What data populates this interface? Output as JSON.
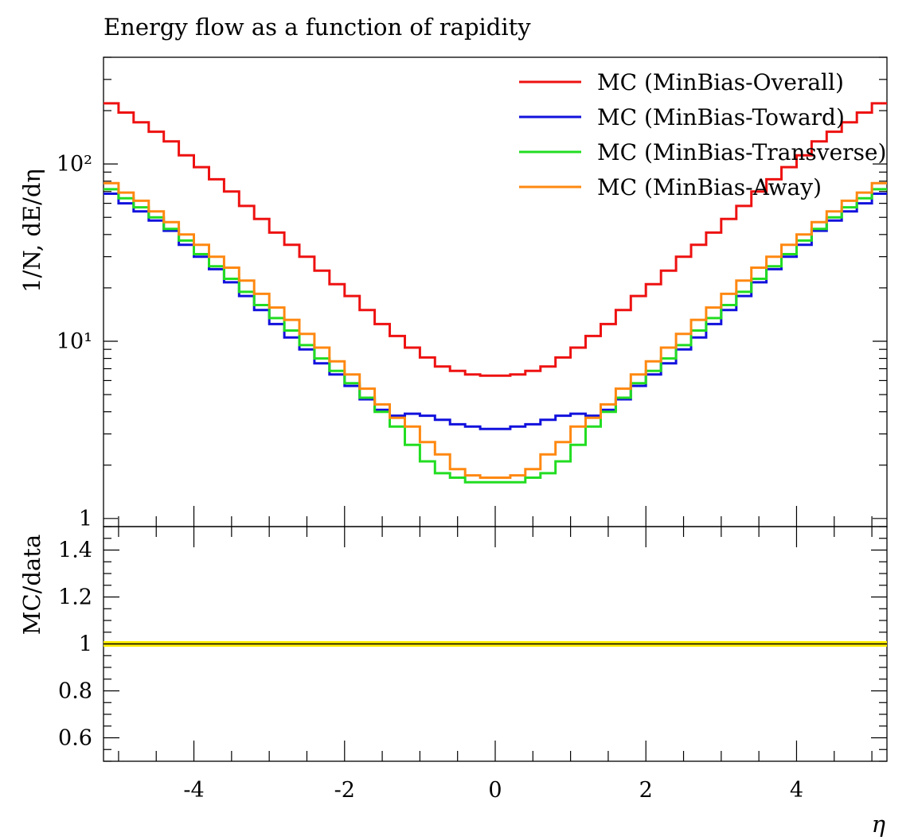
{
  "chart_data": [
    {
      "type": "line",
      "title": "Energy flow as a function of rapidity",
      "ylabel": "1/N, dE/dη",
      "xlabel": "",
      "yscale": "log",
      "ylim": [
        0.9,
        400
      ],
      "xlim": [
        -5.2,
        5.2
      ],
      "ytick_labels": [
        "1",
        "10¹",
        "10²"
      ],
      "legend_position": "top-right",
      "bin_edges": [
        -5.2,
        -5.0,
        -4.8,
        -4.6,
        -4.4,
        -4.2,
        -4.0,
        -3.8,
        -3.6,
        -3.4,
        -3.2,
        -3.0,
        -2.8,
        -2.6,
        -2.4,
        -2.2,
        -2.0,
        -1.8,
        -1.6,
        -1.4,
        -1.2,
        -1.0,
        -0.8,
        -0.6,
        -0.4,
        -0.2,
        0.0,
        0.2,
        0.4,
        0.6,
        0.8,
        1.0,
        1.2,
        1.4,
        1.6,
        1.8,
        2.0,
        2.2,
        2.4,
        2.6,
        2.8,
        3.0,
        3.2,
        3.4,
        3.6,
        3.8,
        4.0,
        4.2,
        4.4,
        4.6,
        4.8,
        5.0,
        5.2
      ],
      "series": [
        {
          "name": "MC (MinBias-Overall)",
          "color": "#ee1111",
          "values": [
            220,
            195,
            172,
            152,
            134,
            112,
            96,
            82,
            70,
            58,
            49,
            41,
            35,
            30,
            25,
            21,
            18,
            15,
            12.5,
            10.7,
            9.2,
            8.1,
            7.2,
            6.8,
            6.5,
            6.4,
            6.4,
            6.5,
            6.8,
            7.2,
            8.1,
            9.2,
            10.7,
            12.5,
            15,
            18,
            21,
            25,
            30,
            35,
            41,
            49,
            58,
            70,
            82,
            96,
            112,
            134,
            152,
            172,
            195,
            220
          ]
        },
        {
          "name": "MC (MinBias-Toward)",
          "color": "#1111dd",
          "values": [
            68,
            60,
            54,
            48,
            42,
            35,
            30,
            25.5,
            21.5,
            18,
            15,
            12.5,
            10.5,
            9.0,
            7.5,
            6.5,
            5.6,
            4.7,
            4.1,
            3.8,
            3.9,
            3.8,
            3.6,
            3.4,
            3.3,
            3.2,
            3.2,
            3.3,
            3.4,
            3.6,
            3.8,
            3.9,
            3.8,
            4.1,
            4.7,
            5.6,
            6.5,
            7.5,
            9.0,
            10.5,
            12.5,
            15,
            18,
            21.5,
            25.5,
            30,
            35,
            42,
            48,
            54,
            60,
            68
          ]
        },
        {
          "name": "MC (MinBias-Transverse)",
          "color": "#22dd22",
          "values": [
            72,
            64,
            57,
            50,
            43,
            37,
            31,
            26.5,
            22.5,
            19,
            16,
            13.5,
            11.5,
            9.5,
            8.0,
            6.8,
            5.8,
            4.8,
            4.0,
            3.3,
            2.6,
            2.1,
            1.8,
            1.7,
            1.6,
            1.6,
            1.6,
            1.6,
            1.7,
            1.8,
            2.1,
            2.6,
            3.3,
            4.0,
            4.8,
            5.8,
            6.8,
            8.0,
            9.5,
            11.5,
            13.5,
            16,
            19,
            22.5,
            26.5,
            31,
            37,
            43,
            50,
            57,
            64,
            72
          ]
        },
        {
          "name": "MC (MinBias-Away)",
          "color": "#ff8811",
          "values": [
            78,
            69,
            62,
            54,
            47,
            40,
            35,
            30,
            26,
            22,
            18.5,
            15.5,
            13.2,
            11.0,
            9.2,
            7.7,
            6.5,
            5.4,
            4.4,
            3.7,
            3.3,
            2.7,
            2.3,
            1.9,
            1.75,
            1.7,
            1.7,
            1.75,
            1.9,
            2.3,
            2.7,
            3.3,
            3.7,
            4.4,
            5.4,
            6.5,
            7.7,
            9.2,
            11.0,
            13.2,
            15.5,
            18.5,
            22,
            26,
            30,
            35,
            40,
            47,
            54,
            62,
            69,
            78
          ]
        }
      ]
    },
    {
      "type": "line",
      "title": "",
      "ylabel": "MC/data",
      "xlabel": "η",
      "ylim": [
        0.5,
        1.5
      ],
      "xlim": [
        -5.2,
        5.2
      ],
      "ytick_labels": [
        "0.6",
        "0.8",
        "1",
        "1.2",
        "1.4"
      ],
      "xtick_labels": [
        "-4",
        "-2",
        "0",
        "2",
        "4"
      ],
      "reference_band": {
        "y": 1.0,
        "half_width": 0.012,
        "color": "#ffee00"
      }
    }
  ]
}
